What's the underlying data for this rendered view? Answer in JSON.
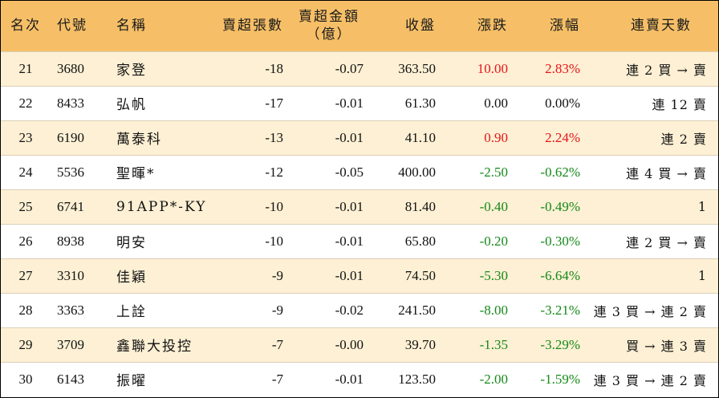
{
  "headers": {
    "rank": "名次",
    "code": "代號",
    "name": "名稱",
    "net_sell_lots": "賣超張數",
    "net_sell_amount_line1": "賣超金額",
    "net_sell_amount_line2": "（億）",
    "close": "收盤",
    "change": "漲跌",
    "change_pct": "漲幅",
    "streak": "連賣天數"
  },
  "colors": {
    "header_bg": "#f6bf67",
    "stripe_bg": "#fdf0d4",
    "up": "#e8141b",
    "down": "#16891a"
  },
  "rows": [
    {
      "rank": "21",
      "code": "3680",
      "name": "家登",
      "lots": "-18",
      "amount": "-0.07",
      "close": "363.50",
      "change": "10.00",
      "pct": "2.83%",
      "streak": "連 2 買 → 賣",
      "dir": "up"
    },
    {
      "rank": "22",
      "code": "8433",
      "name": "弘帆",
      "lots": "-17",
      "amount": "-0.01",
      "close": "61.30",
      "change": "0.00",
      "pct": "0.00%",
      "streak": "連 12 賣",
      "dir": "flat"
    },
    {
      "rank": "23",
      "code": "6190",
      "name": "萬泰科",
      "lots": "-13",
      "amount": "-0.01",
      "close": "41.10",
      "change": "0.90",
      "pct": "2.24%",
      "streak": "連 2 賣",
      "dir": "up"
    },
    {
      "rank": "24",
      "code": "5536",
      "name": "聖暉*",
      "lots": "-12",
      "amount": "-0.05",
      "close": "400.00",
      "change": "-2.50",
      "pct": "-0.62%",
      "streak": "連 4 買 → 賣",
      "dir": "down"
    },
    {
      "rank": "25",
      "code": "6741",
      "name": "91APP*-KY",
      "lots": "-10",
      "amount": "-0.01",
      "close": "81.40",
      "change": "-0.40",
      "pct": "-0.49%",
      "streak": "1",
      "dir": "down"
    },
    {
      "rank": "26",
      "code": "8938",
      "name": "明安",
      "lots": "-10",
      "amount": "-0.01",
      "close": "65.80",
      "change": "-0.20",
      "pct": "-0.30%",
      "streak": "連 2 買 → 賣",
      "dir": "down"
    },
    {
      "rank": "27",
      "code": "3310",
      "name": "佳穎",
      "lots": "-9",
      "amount": "-0.01",
      "close": "74.50",
      "change": "-5.30",
      "pct": "-6.64%",
      "streak": "1",
      "dir": "down"
    },
    {
      "rank": "28",
      "code": "3363",
      "name": "上詮",
      "lots": "-9",
      "amount": "-0.02",
      "close": "241.50",
      "change": "-8.00",
      "pct": "-3.21%",
      "streak": "連 3 買 → 連 2 賣",
      "dir": "down"
    },
    {
      "rank": "29",
      "code": "3709",
      "name": "鑫聯大投控",
      "lots": "-7",
      "amount": "-0.00",
      "close": "39.70",
      "change": "-1.35",
      "pct": "-3.29%",
      "streak": "買 → 連 3 賣",
      "dir": "down"
    },
    {
      "rank": "30",
      "code": "6143",
      "name": "振曜",
      "lots": "-7",
      "amount": "-0.01",
      "close": "123.50",
      "change": "-2.00",
      "pct": "-1.59%",
      "streak": "連 3 買 → 連 2 賣",
      "dir": "down"
    }
  ]
}
